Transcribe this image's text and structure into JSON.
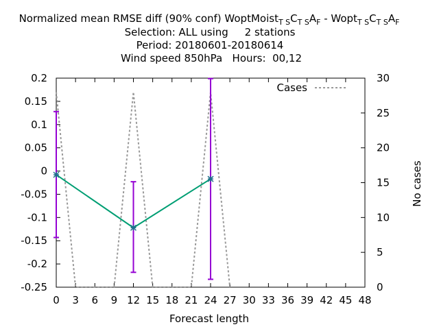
{
  "chart_data": {
    "type": "line",
    "title": {
      "line1_prefix": "Normalized mean RMSE diff (90% conf) WoptMoist",
      "line1_sub1": "T S",
      "line1_c1": "C",
      "line1_sub2": "T S",
      "line1_a1": "A",
      "line1_sub3": "F",
      "line1_mid": " - Wopt",
      "line1_sub4": "T S",
      "line1_c2": "C",
      "line1_sub5": "T S",
      "line1_a2": "A",
      "line1_sub6": "F",
      "line2": "Selection: ALL using     2 stations",
      "line3": "Period: 20180601-20180614",
      "line4": "Wind speed 850hPa   Hours:  00,12"
    },
    "xlabel": "Forecast length",
    "ylabel": "",
    "y2label": "No cases",
    "xlim": [
      0,
      48
    ],
    "ylim": [
      -0.25,
      0.2
    ],
    "y2lim": [
      0,
      30
    ],
    "xticks": [
      "0",
      "3",
      "6",
      "9",
      "12",
      "15",
      "18",
      "21",
      "24",
      "27",
      "30",
      "33",
      "36",
      "39",
      "42",
      "45",
      "48"
    ],
    "yticks": [
      "0.2",
      "0.15",
      "0.1",
      "0.05",
      "0",
      "-0.05",
      "-0.1",
      "-0.15",
      "-0.2",
      "-0.25"
    ],
    "y2ticks": [
      "30",
      "25",
      "20",
      "15",
      "10",
      "5",
      "0"
    ],
    "legend": {
      "position": "top-right",
      "entries": [
        "Cases"
      ]
    },
    "series": [
      {
        "role": "score",
        "color": "#009e73",
        "x": [
          0,
          12,
          24
        ],
        "y": [
          -0.008,
          -0.122,
          -0.017
        ]
      },
      {
        "role": "errorbars",
        "color": "#9400d3",
        "x": [
          0,
          12,
          24
        ],
        "low": [
          -0.143,
          -0.218,
          -0.233
        ],
        "high": [
          0.128,
          -0.023,
          0.199
        ]
      },
      {
        "name": "Cases",
        "color": "#999999",
        "axis": "y2",
        "x": [
          0,
          3,
          9,
          12,
          15,
          21,
          24,
          27
        ],
        "y": [
          28,
          0,
          0,
          28,
          0,
          0,
          28,
          0
        ]
      }
    ]
  }
}
